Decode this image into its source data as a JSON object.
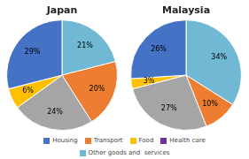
{
  "chart_data": [
    {
      "type": "pie",
      "title": "Japan",
      "values": [
        21,
        20,
        24,
        6,
        29
      ],
      "value_labels": [
        "21%",
        "20%",
        "24%",
        "6%",
        "29%"
      ],
      "colors": [
        "#70B8D4",
        "#ED7D31",
        "#A5A5A5",
        "#FFC000",
        "#4472C4"
      ],
      "data_labels": true
    },
    {
      "type": "pie",
      "title": "Malaysia",
      "values": [
        34,
        10,
        27,
        3,
        26
      ],
      "value_labels": [
        "34%",
        "10%",
        "27%",
        "3%",
        "26%"
      ],
      "colors": [
        "#70B8D4",
        "#ED7D31",
        "#A5A5A5",
        "#FFC000",
        "#4472C4"
      ],
      "data_labels": true
    }
  ],
  "legend": "bottom",
  "series": [
    {
      "name": "Housing",
      "color": "#4472C4"
    },
    {
      "name": "Transport",
      "color": "#ED7D31"
    },
    {
      "name": "Food",
      "color": "#FFC000"
    },
    {
      "name": "Health care",
      "color": "#7030A0"
    },
    {
      "name": "Other goods and  services",
      "color": "#70B8D4"
    }
  ]
}
